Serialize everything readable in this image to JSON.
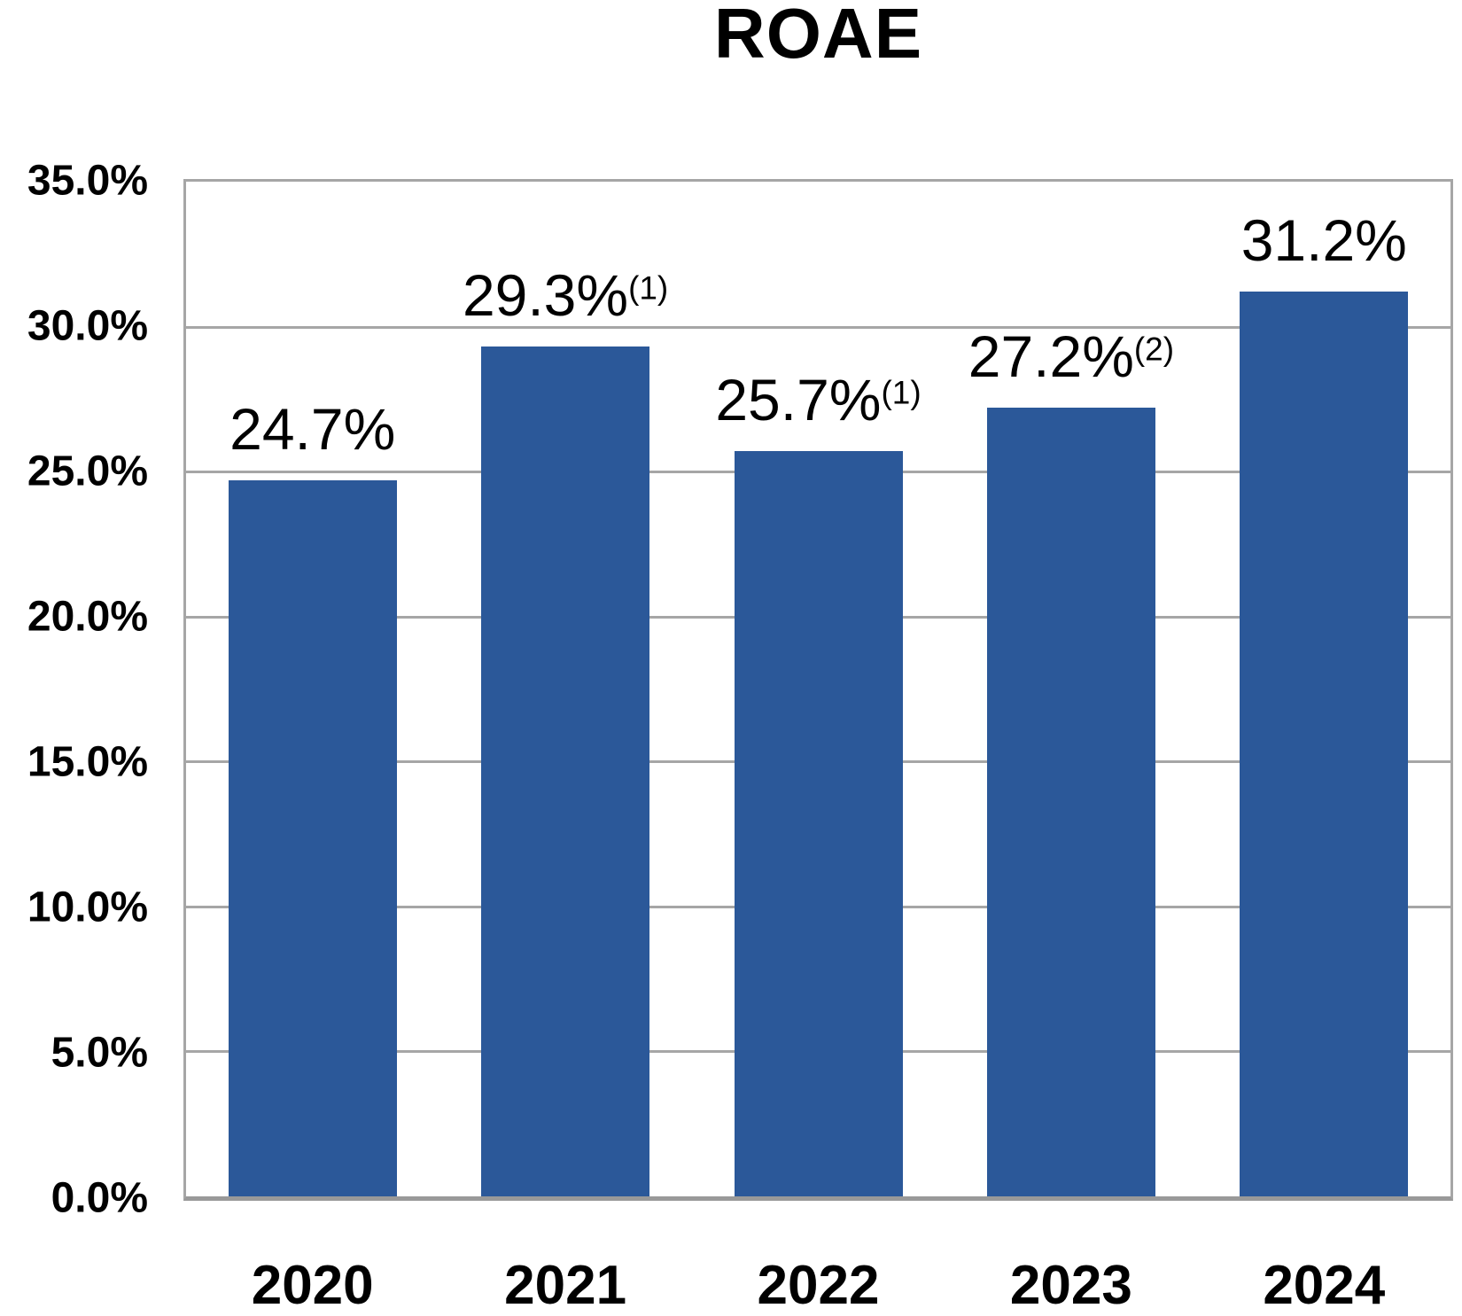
{
  "title": "ROAE",
  "chart_data": {
    "type": "bar",
    "title": "ROAE",
    "categories": [
      "2020",
      "2021",
      "2022",
      "2023",
      "2024"
    ],
    "values": [
      24.7,
      29.3,
      25.7,
      27.2,
      31.2
    ],
    "bar_labels": [
      {
        "text": "24.7%",
        "note": ""
      },
      {
        "text": "29.3%",
        "note": "(1)"
      },
      {
        "text": "25.7%",
        "note": "(1)"
      },
      {
        "text": "27.2%",
        "note": "(2)"
      },
      {
        "text": "31.2%",
        "note": ""
      }
    ],
    "xlabel": "",
    "ylabel": "",
    "y_axis": {
      "min": 0,
      "max": 35,
      "step": 5,
      "tick_labels": [
        "35.0%",
        "30.0%",
        "25.0%",
        "20.0%",
        "15.0%",
        "10.0%",
        "5.0%",
        "0.0%"
      ]
    },
    "grid": true,
    "legend_position": "none",
    "colors": {
      "bar": "#2B5899",
      "gridline": "#A6A6A6",
      "plot_border": "#A6A6A6",
      "axis_line": "#999999",
      "text": "#000000",
      "background": "#FFFFFF"
    }
  }
}
